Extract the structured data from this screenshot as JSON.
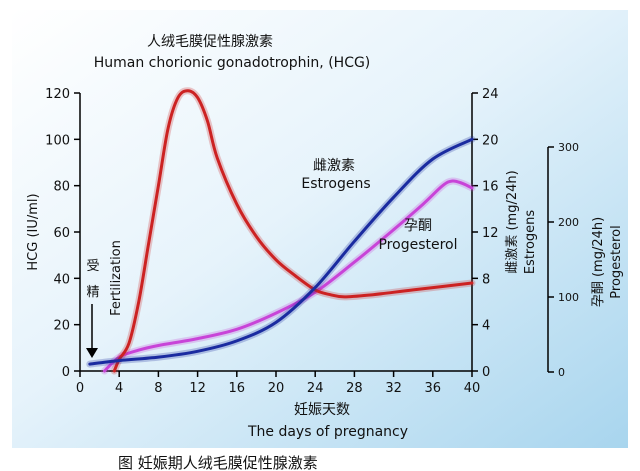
{
  "chart_data": {
    "type": "line",
    "title": {
      "cn": "人绒毛膜促性腺激素",
      "en": "Human chorionic gonadotrophin,  (HCG)"
    },
    "x": {
      "label_cn": "妊娠天数",
      "label_en": "The days of pregnancy",
      "range": [
        0,
        40
      ],
      "ticks": [
        0,
        4,
        8,
        12,
        16,
        20,
        24,
        28,
        32,
        36,
        40
      ]
    },
    "y_left": {
      "label": "HCG (IU/ml)",
      "range": [
        0,
        120
      ],
      "ticks": [
        0,
        20,
        40,
        60,
        80,
        100,
        120
      ]
    },
    "y_right1": {
      "label_cn": "雌激素 (mg/24h)",
      "label_en": "Estrogens",
      "range": [
        0,
        24
      ],
      "ticks": [
        0,
        4,
        8,
        12,
        16,
        20,
        24
      ]
    },
    "y_right2": {
      "label_cn": "孕酮 (mg/24h)",
      "label_en": "Progesterol",
      "range": [
        0,
        300
      ],
      "ticks": [
        0,
        100,
        200,
        300
      ]
    },
    "series": [
      {
        "name": "HCG",
        "axis": "left",
        "color": "#cc2222",
        "points": [
          [
            3.5,
            0
          ],
          [
            4,
            5
          ],
          [
            5,
            12
          ],
          [
            6,
            30
          ],
          [
            7,
            55
          ],
          [
            8,
            80
          ],
          [
            9,
            105
          ],
          [
            10,
            118
          ],
          [
            11,
            121
          ],
          [
            12,
            118
          ],
          [
            13,
            108
          ],
          [
            14,
            92
          ],
          [
            16,
            72
          ],
          [
            18,
            58
          ],
          [
            20,
            48
          ],
          [
            22,
            41
          ],
          [
            24,
            35
          ],
          [
            25.5,
            33
          ],
          [
            27,
            32
          ],
          [
            30,
            33
          ],
          [
            34,
            35
          ],
          [
            40,
            38
          ]
        ]
      },
      {
        "name": "Estrogens",
        "label_cn": "雌激素",
        "label_en": "Estrogens",
        "axis": "right1",
        "color": "#1a2ba0",
        "points": [
          [
            1,
            0.6
          ],
          [
            4,
            0.9
          ],
          [
            8,
            1.2
          ],
          [
            12,
            1.7
          ],
          [
            16,
            2.6
          ],
          [
            20,
            4.2
          ],
          [
            24,
            7.2
          ],
          [
            28,
            11.2
          ],
          [
            32,
            15.0
          ],
          [
            36,
            18.3
          ],
          [
            40,
            20.0
          ]
        ]
      },
      {
        "name": "Progesterol",
        "label_cn": "孕酮",
        "label_en": "Progesterol",
        "axis": "left",
        "color": "#c844d8",
        "points": [
          [
            2.5,
            0
          ],
          [
            4,
            6
          ],
          [
            6,
            9
          ],
          [
            8,
            11
          ],
          [
            12,
            14
          ],
          [
            16,
            18
          ],
          [
            20,
            25
          ],
          [
            24,
            34
          ],
          [
            28,
            47
          ],
          [
            32,
            61
          ],
          [
            35,
            72
          ],
          [
            37,
            80
          ],
          [
            38,
            82
          ],
          [
            39,
            81
          ],
          [
            40,
            79
          ]
        ]
      }
    ],
    "annotations": {
      "fertilization_cn": [
        "受",
        "精"
      ],
      "fertilization_en": "Fertilization"
    },
    "caption_partial": "图     妊娠期人绒毛膜促性腺激素"
  },
  "colors": {
    "hcg": "#cc2222",
    "estrogens": "#1a2ba0",
    "progesterol": "#c844d8"
  }
}
